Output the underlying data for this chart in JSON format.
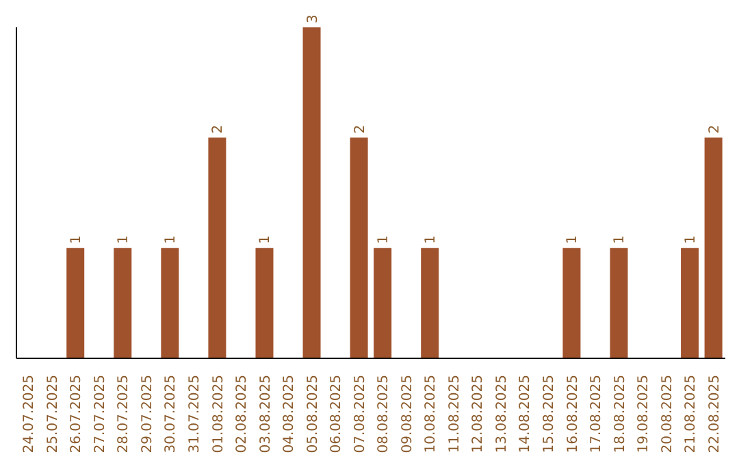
{
  "chart_data": {
    "type": "bar",
    "categories": [
      "24.07.2025",
      "25.07.2025",
      "26.07.2025",
      "27.07.2025",
      "28.07.2025",
      "29.07.2025",
      "30.07.2025",
      "31.07.2025",
      "01.08.2025",
      "02.08.2025",
      "03.08.2025",
      "04.08.2025",
      "05.08.2025",
      "06.08.2025",
      "07.08.2025",
      "08.08.2025",
      "09.08.2025",
      "10.08.2025",
      "11.08.2025",
      "12.08.2025",
      "13.08.2025",
      "14.08.2025",
      "15.08.2025",
      "16.08.2025",
      "17.08.2025",
      "18.08.2025",
      "19.08.2025",
      "20.08.2025",
      "21.08.2025",
      "22.08.2025"
    ],
    "values": [
      0,
      0,
      1,
      0,
      1,
      0,
      1,
      0,
      2,
      0,
      1,
      0,
      3,
      0,
      2,
      1,
      0,
      1,
      0,
      0,
      0,
      0,
      0,
      1,
      0,
      1,
      0,
      0,
      1,
      2
    ],
    "value_labels": [
      null,
      null,
      "1",
      null,
      "1",
      null,
      "1",
      null,
      "2",
      null,
      "1",
      null,
      "3",
      null,
      "2",
      "1",
      null,
      "1",
      null,
      null,
      null,
      null,
      null,
      "1",
      null,
      "1",
      null,
      null,
      "1",
      "2"
    ],
    "color": "#a0522d",
    "ylim": [
      0,
      3
    ],
    "grid": false,
    "legend": false
  }
}
